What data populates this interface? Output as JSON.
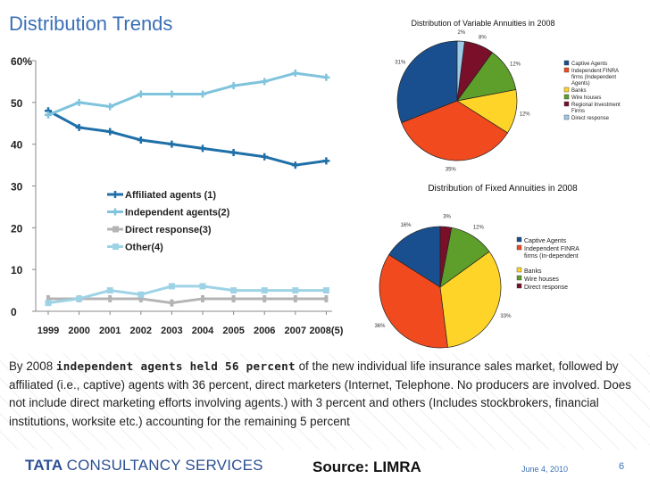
{
  "slide": {
    "title": "Distribution Trends",
    "body": {
      "pre": "By 2008 ",
      "highlight": "independent agents held 56 percent",
      "post": " of the new individual life insurance sales market, followed by  affiliated (i.e., captive) agents with 36 percent, direct marketers (Internet, Telephone. No producers are involved. Does not include direct marketing efforts involving agents.)   with 3 percent and others (Includes stockbrokers, financial institutions, worksite etc.) accounting for the remaining 5 percent"
    },
    "footer": {
      "logo_bold": "TATA",
      "logo_light": "CONSULTANCY SERVICES",
      "source": "Source: LIMRA",
      "date": "June 4, 2010",
      "page": "6"
    }
  },
  "chart_data": [
    {
      "type": "line",
      "title": "",
      "x": [
        "1999",
        "2000",
        "2001",
        "2002",
        "2003",
        "2004",
        "2005",
        "2006",
        "2007",
        "2008(5)"
      ],
      "ylim": [
        0,
        60
      ],
      "yticks": [
        "0",
        "10",
        "20",
        "30",
        "40",
        "50",
        "60%"
      ],
      "grid": false,
      "legend_position": "center",
      "series": [
        {
          "name": "Affiliated agents (1)",
          "color": "#1f6fa8",
          "marker": "plus",
          "values": [
            48,
            44,
            43,
            41,
            40,
            39,
            38,
            37,
            35,
            36
          ]
        },
        {
          "name": "Independent agents(2)",
          "color": "#7fc4dc",
          "marker": "plus",
          "values": [
            47,
            50,
            49,
            52,
            52,
            52,
            54,
            55,
            57,
            56
          ]
        },
        {
          "name": "Direct response(3)",
          "color": "#b4b4b4",
          "marker": "bar",
          "values": [
            3,
            3,
            3,
            3,
            2,
            3,
            3,
            3,
            3,
            3
          ]
        },
        {
          "name": "Other(4)",
          "color": "#9ed3e6",
          "marker": "square",
          "values": [
            2,
            3,
            5,
            4,
            6,
            6,
            5,
            5,
            5,
            5
          ]
        }
      ]
    },
    {
      "type": "pie",
      "title": "Distribution of Variable Annuities in 2008",
      "legend_position": "right",
      "slices": [
        {
          "name": "Captive Agents",
          "value": 31,
          "color": "#1a4f8f"
        },
        {
          "name": "Independent FINRA firms (Independent Agents)",
          "value": 35,
          "color": "#f04a1e"
        },
        {
          "name": "Banks",
          "value": 12,
          "color": "#ffd428"
        },
        {
          "name": "Wire houses",
          "value": 12,
          "color": "#5e9e2a"
        },
        {
          "name": "Regional Investment Firms",
          "value": 8,
          "color": "#7a0f2a"
        },
        {
          "name": "Direct response",
          "value": 2,
          "color": "#9ecae8"
        }
      ],
      "labels": [
        "31%",
        "35%",
        "12%",
        "12%",
        "8%",
        "2%"
      ]
    },
    {
      "type": "pie",
      "title": "Distribution of Fixed Annuities in 2008",
      "legend_position": "right",
      "slices": [
        {
          "name": "Captive Agents",
          "value": 16,
          "color": "#1a4f8f"
        },
        {
          "name": "Independent FINRA firms (In-dependent",
          "value": 36,
          "color": "#f04a1e"
        },
        {
          "name": "Banks",
          "value": 33,
          "color": "#ffd428"
        },
        {
          "name": "Wire houses",
          "value": 12,
          "color": "#5e9e2a"
        },
        {
          "name": "Direct response",
          "value": 3,
          "color": "#7a0f2a"
        }
      ],
      "labels": [
        "16%",
        "36%",
        "33%",
        "12%",
        "3%"
      ]
    }
  ]
}
